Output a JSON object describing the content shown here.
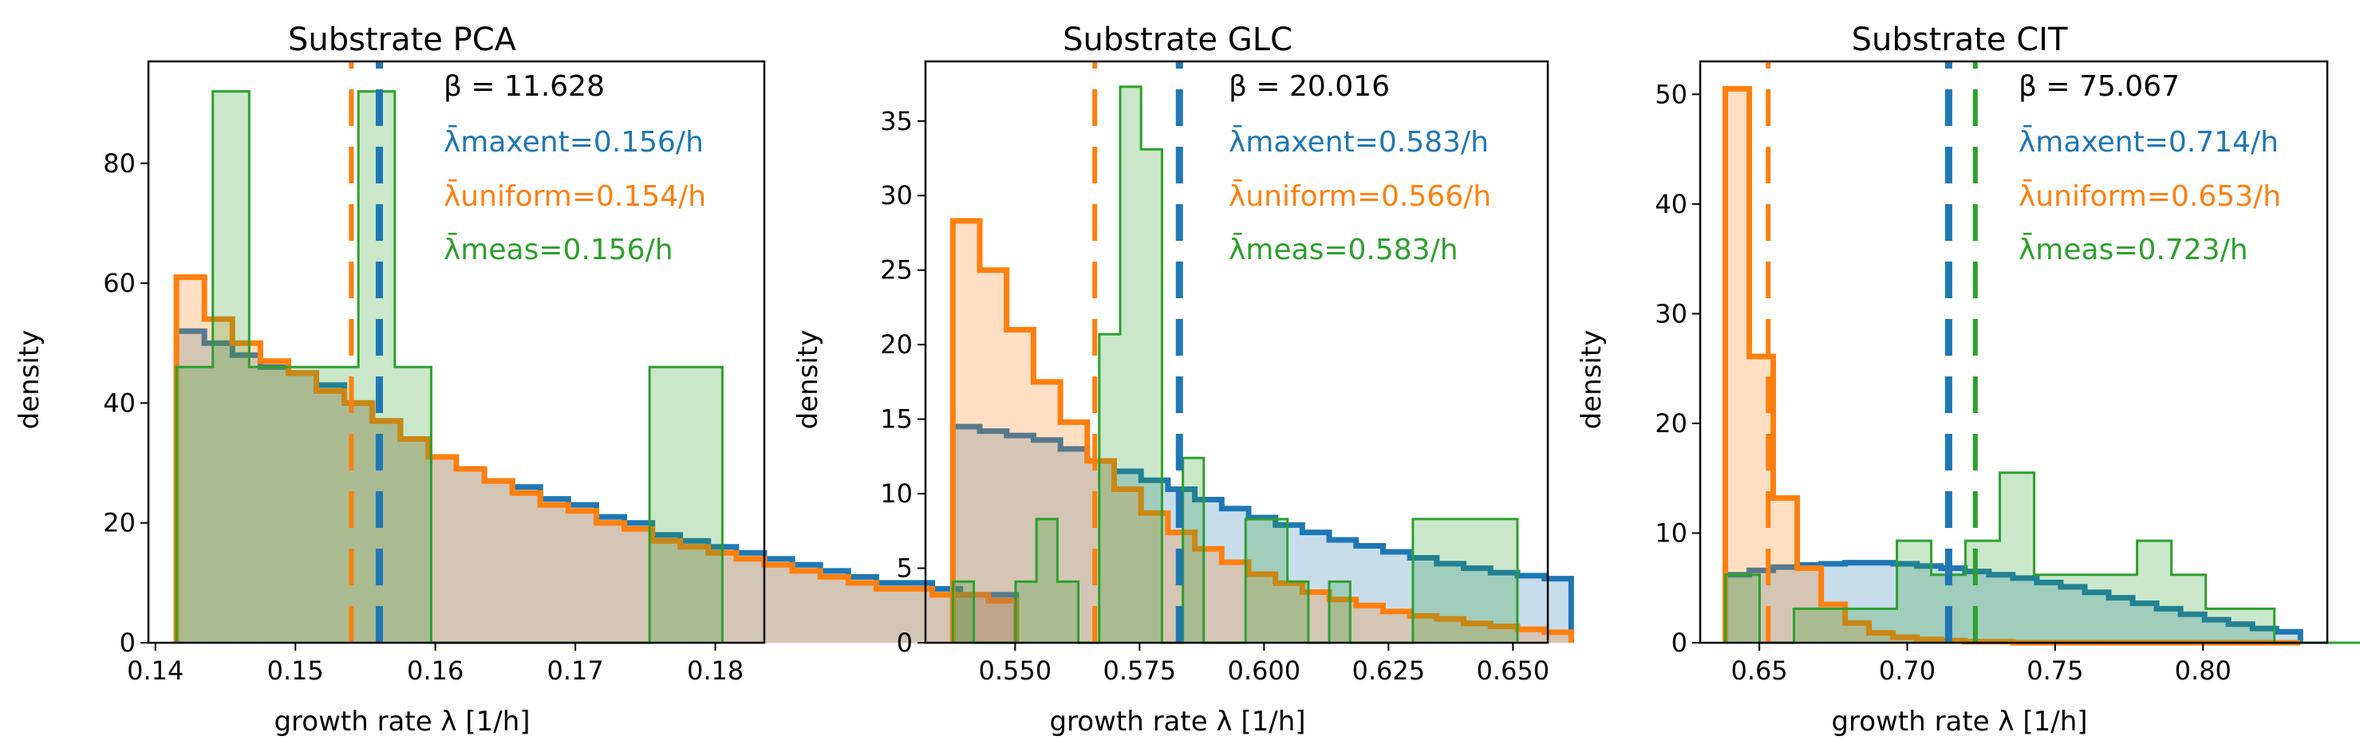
{
  "colors": {
    "maxent": "#1f77b4",
    "uniform": "#ff7f0e",
    "meas": "#2ca02c"
  },
  "chart_data": [
    {
      "type": "histogram",
      "title": "Substrate PCA",
      "xlabel": "growth rate λ [1/h]",
      "ylabel": "density",
      "xlim": [
        0.1395,
        0.1835
      ],
      "ylim": [
        0,
        97
      ],
      "xticks": [
        0.14,
        0.15,
        0.16,
        0.17,
        0.18
      ],
      "xtick_labels": [
        "0.14",
        "0.15",
        "0.16",
        "0.17",
        "0.18"
      ],
      "yticks": [
        0,
        20,
        40,
        60,
        80
      ],
      "yticks_labels": [
        "0",
        "20",
        "40",
        "60",
        "80"
      ],
      "means": {
        "maxent": 0.156,
        "uniform": 0.154,
        "meas": 0.156
      },
      "annotations": {
        "beta": "β = 11.628",
        "maxent": "λ̄maxent=0.156/h",
        "uniform": "λ̄uniform=0.154/h",
        "meas": "λ̄meas=0.156/h"
      },
      "series": [
        {
          "name": "maxent",
          "bin_start": 0.1415,
          "bin_width": 0.002,
          "values": [
            52,
            50,
            48,
            46,
            45,
            43,
            40,
            37,
            34,
            31,
            29,
            27,
            26,
            24,
            23,
            21,
            20,
            18,
            17,
            16,
            15,
            14,
            13,
            12,
            11,
            10,
            10,
            9,
            8,
            8
          ]
        },
        {
          "name": "uniform",
          "bin_start": 0.1415,
          "bin_width": 0.002,
          "values": [
            61,
            54,
            50,
            47,
            45,
            42,
            40,
            37,
            34,
            31,
            29,
            27,
            25,
            23,
            22,
            20,
            19,
            17,
            16,
            15,
            14,
            13,
            12,
            11,
            10,
            9,
            9,
            8,
            8,
            7
          ]
        },
        {
          "name": "meas",
          "bin_start": 0.1415,
          "bin_width": 0.0026,
          "values": [
            46,
            92,
            46,
            46,
            46,
            92,
            46,
            0,
            0,
            0,
            0,
            0,
            0,
            46,
            46
          ]
        }
      ]
    },
    {
      "type": "histogram",
      "title": "Substrate GLC",
      "xlabel": "growth rate λ [1/h]",
      "ylabel": "density",
      "xlim": [
        0.532,
        0.657
      ],
      "ylim": [
        0,
        39
      ],
      "xticks": [
        0.55,
        0.575,
        0.6,
        0.625,
        0.65
      ],
      "xtick_labels": [
        "0.550",
        "0.575",
        "0.600",
        "0.625",
        "0.650"
      ],
      "yticks": [
        0,
        5,
        10,
        15,
        20,
        25,
        30,
        35
      ],
      "yticks_labels": [
        "0",
        "5",
        "10",
        "15",
        "20",
        "25",
        "30",
        "35"
      ],
      "means": {
        "maxent": 0.583,
        "uniform": 0.566,
        "meas": 0.583
      },
      "annotations": {
        "beta": "β = 20.016",
        "maxent": "λ̄maxent=0.583/h",
        "uniform": "λ̄uniform=0.566/h",
        "meas": "λ̄meas=0.583/h"
      },
      "series": [
        {
          "name": "maxent",
          "bin_start": 0.5375,
          "bin_width": 0.0054,
          "values": [
            14.5,
            14.2,
            13.9,
            13.6,
            13.0,
            12.2,
            11.5,
            10.9,
            10.3,
            9.6,
            9.0,
            8.4,
            7.9,
            7.4,
            6.9,
            6.5,
            6.1,
            5.7,
            5.3,
            5.0,
            4.7,
            4.5,
            4.3
          ]
        },
        {
          "name": "uniform",
          "bin_start": 0.5375,
          "bin_width": 0.0054,
          "values": [
            28.3,
            25.0,
            21.0,
            17.5,
            14.8,
            12.2,
            10.3,
            8.7,
            7.4,
            6.3,
            5.4,
            4.6,
            4.0,
            3.4,
            2.9,
            2.5,
            2.1,
            1.8,
            1.6,
            1.3,
            1.1,
            0.9,
            0.7
          ]
        },
        {
          "name": "meas",
          "bin_start": 0.5375,
          "bin_width": 0.0042,
          "values": [
            4.1,
            0,
            0,
            4.1,
            8.3,
            4.1,
            0,
            20.7,
            37.3,
            33.1,
            0,
            12.4,
            0,
            0,
            8.3,
            8.3,
            4.1,
            0,
            4.1,
            0,
            0,
            0,
            8.3,
            8.3,
            8.3,
            8.3,
            8.3
          ]
        }
      ]
    },
    {
      "type": "histogram",
      "title": "Substrate CIT",
      "xlabel": "growth rate λ [1/h]",
      "ylabel": "density",
      "xlim": [
        0.63,
        0.842
      ],
      "ylim": [
        0,
        53
      ],
      "xticks": [
        0.65,
        0.7,
        0.75,
        0.8
      ],
      "xtick_labels": [
        "0.65",
        "0.70",
        "0.75",
        "0.80"
      ],
      "yticks": [
        0,
        10,
        20,
        30,
        40,
        50
      ],
      "yticks_labels": [
        "0",
        "10",
        "20",
        "30",
        "40",
        "50"
      ],
      "means": {
        "maxent": 0.714,
        "uniform": 0.653,
        "meas": 0.723
      },
      "annotations": {
        "beta": "β = 75.067",
        "maxent": "λ̄maxent=0.714/h",
        "uniform": "λ̄uniform=0.653/h",
        "meas": "λ̄meas=0.723/h"
      },
      "series": [
        {
          "name": "maxent",
          "bin_start": 0.6385,
          "bin_width": 0.0081,
          "values": [
            6.2,
            6.6,
            6.9,
            7.1,
            7.2,
            7.3,
            7.3,
            7.2,
            7.0,
            6.8,
            6.5,
            6.2,
            5.9,
            5.5,
            5.1,
            4.6,
            4.1,
            3.6,
            3.1,
            2.6,
            2.1,
            1.7,
            1.3,
            1.0
          ]
        },
        {
          "name": "uniform",
          "bin_start": 0.6385,
          "bin_width": 0.0081,
          "values": [
            50.5,
            26.1,
            13.2,
            6.8,
            3.5,
            1.8,
            0.9,
            0.5,
            0.3,
            0.2,
            0.1,
            0.1,
            0,
            0,
            0,
            0,
            0,
            0,
            0,
            0,
            0,
            0,
            0,
            0
          ]
        },
        {
          "name": "meas",
          "bin_start": 0.6385,
          "bin_width": 0.0116,
          "values": [
            6.2,
            0,
            3.1,
            3.1,
            3.1,
            9.3,
            6.2,
            9.3,
            15.5,
            6.2,
            6.2,
            6.2,
            9.3,
            6.2,
            3.1,
            3.1,
            0,
            0,
            0,
            0,
            0,
            0
          ]
        }
      ]
    }
  ]
}
